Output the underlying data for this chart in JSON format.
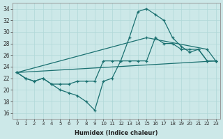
{
  "xlabel": "Humidex (Indice chaleur)",
  "xlim": [
    -0.5,
    23.5
  ],
  "ylim": [
    15,
    35
  ],
  "yticks": [
    16,
    18,
    20,
    22,
    24,
    26,
    28,
    30,
    32,
    34
  ],
  "xticks": [
    0,
    1,
    2,
    3,
    4,
    5,
    6,
    7,
    8,
    9,
    10,
    11,
    12,
    13,
    14,
    15,
    16,
    17,
    18,
    19,
    20,
    21,
    22,
    23
  ],
  "bg_color": "#cce8e8",
  "line_color": "#1a7070",
  "line1_x": [
    0,
    1,
    2,
    3,
    4,
    5,
    6,
    7,
    8,
    9,
    10,
    11,
    12,
    13,
    14,
    15,
    16,
    17,
    18,
    19,
    20,
    21,
    22,
    23
  ],
  "line1_y": [
    23,
    22,
    21.5,
    22,
    21,
    21,
    21,
    21.5,
    21.5,
    21.5,
    25,
    25,
    25,
    25,
    25,
    25,
    29,
    28,
    28,
    27,
    27,
    27,
    25,
    25
  ],
  "line2_x": [
    0,
    1,
    2,
    3,
    4,
    5,
    6,
    7,
    8,
    9,
    10,
    11,
    12,
    13,
    14,
    15,
    16,
    17,
    18,
    19,
    20,
    21,
    22,
    23
  ],
  "line2_y": [
    23,
    22,
    21.5,
    22,
    21,
    20,
    19.5,
    19,
    18,
    16.5,
    21.5,
    22,
    25,
    29,
    33.5,
    34,
    33,
    32,
    29,
    27.5,
    26.5,
    27,
    25,
    25
  ],
  "line3_x": [
    0,
    15,
    22,
    23
  ],
  "line3_y": [
    23,
    29,
    27,
    25
  ],
  "line4_x": [
    0,
    23
  ],
  "line4_y": [
    23,
    25
  ]
}
